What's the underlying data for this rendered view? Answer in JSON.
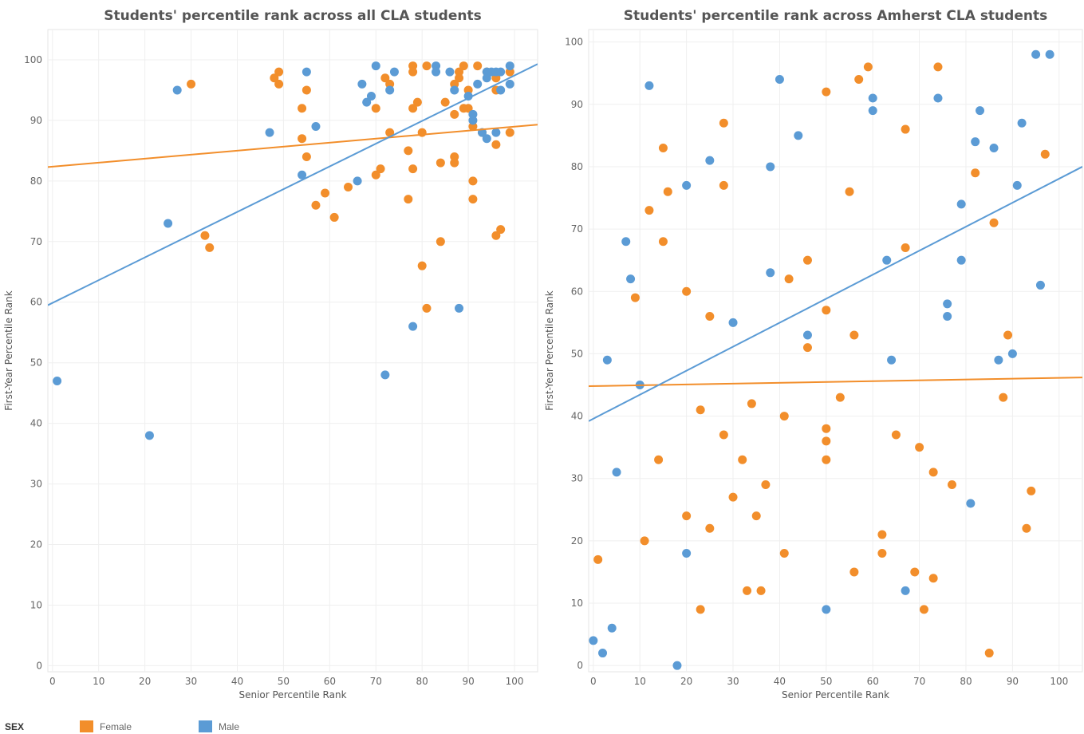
{
  "colors": {
    "female": "#F28E2B",
    "male": "#5B9BD5"
  },
  "legend": {
    "title": "SEX",
    "items": [
      {
        "label": "Female",
        "color": "#F28E2B"
      },
      {
        "label": "Male",
        "color": "#5B9BD5"
      }
    ]
  },
  "chart_data": [
    {
      "type": "scatter",
      "title": "Students' percentile rank across all CLA students",
      "xlabel": "Senior Percentile Rank",
      "ylabel": "First-Year Percentile Rank",
      "xlim": [
        -1,
        105
      ],
      "ylim": [
        -1,
        105
      ],
      "xticks": [
        0,
        10,
        20,
        30,
        40,
        50,
        60,
        70,
        80,
        90,
        100
      ],
      "yticks": [
        0,
        10,
        20,
        30,
        40,
        50,
        60,
        70,
        80,
        90,
        100
      ],
      "grid": true,
      "series": [
        {
          "name": "Female",
          "color": "#F28E2B",
          "trend": [
            [
              -1,
              82.3
            ],
            [
              105,
              89.3
            ]
          ],
          "points": [
            [
              30,
              96
            ],
            [
              33,
              71
            ],
            [
              34,
              69
            ],
            [
              48,
              97
            ],
            [
              49,
              98
            ],
            [
              49,
              96
            ],
            [
              54,
              92
            ],
            [
              54,
              87
            ],
            [
              55,
              95
            ],
            [
              55,
              84
            ],
            [
              57,
              76
            ],
            [
              59,
              78
            ],
            [
              61,
              74
            ],
            [
              64,
              79
            ],
            [
              70,
              81
            ],
            [
              70,
              92
            ],
            [
              71,
              82
            ],
            [
              72,
              97
            ],
            [
              73,
              96
            ],
            [
              73,
              88
            ],
            [
              77,
              85
            ],
            [
              77,
              77
            ],
            [
              78,
              99
            ],
            [
              78,
              98
            ],
            [
              78,
              92
            ],
            [
              78,
              82
            ],
            [
              79,
              93
            ],
            [
              80,
              88
            ],
            [
              80,
              66
            ],
            [
              81,
              99
            ],
            [
              81,
              59
            ],
            [
              84,
              83
            ],
            [
              84,
              70
            ],
            [
              85,
              93
            ],
            [
              87,
              96
            ],
            [
              87,
              91
            ],
            [
              87,
              84
            ],
            [
              87,
              83
            ],
            [
              88,
              98
            ],
            [
              88,
              97
            ],
            [
              89,
              99
            ],
            [
              89,
              92
            ],
            [
              90,
              95
            ],
            [
              90,
              92
            ],
            [
              91,
              89
            ],
            [
              91,
              80
            ],
            [
              91,
              77
            ],
            [
              92,
              99
            ],
            [
              93,
              88
            ],
            [
              94,
              98
            ],
            [
              96,
              97
            ],
            [
              96,
              95
            ],
            [
              96,
              86
            ],
            [
              96,
              71
            ],
            [
              97,
              72
            ],
            [
              99,
              98
            ],
            [
              99,
              88
            ]
          ]
        },
        {
          "name": "Male",
          "color": "#5B9BD5",
          "trend": [
            [
              -1,
              59.5
            ],
            [
              105,
              99.3
            ]
          ],
          "points": [
            [
              1,
              47
            ],
            [
              21,
              38
            ],
            [
              25,
              73
            ],
            [
              27,
              95
            ],
            [
              47,
              88
            ],
            [
              54,
              81
            ],
            [
              55,
              98
            ],
            [
              57,
              89
            ],
            [
              66,
              80
            ],
            [
              67,
              96
            ],
            [
              68,
              93
            ],
            [
              69,
              94
            ],
            [
              70,
              99
            ],
            [
              72,
              48
            ],
            [
              73,
              95
            ],
            [
              74,
              98
            ],
            [
              78,
              56
            ],
            [
              83,
              99
            ],
            [
              83,
              98
            ],
            [
              86,
              98
            ],
            [
              87,
              95
            ],
            [
              88,
              59
            ],
            [
              90,
              94
            ],
            [
              91,
              91
            ],
            [
              91,
              90
            ],
            [
              92,
              96
            ],
            [
              93,
              88
            ],
            [
              94,
              98
            ],
            [
              94,
              97
            ],
            [
              94,
              87
            ],
            [
              95,
              98
            ],
            [
              96,
              98
            ],
            [
              96,
              88
            ],
            [
              97,
              98
            ],
            [
              97,
              95
            ],
            [
              99,
              99
            ],
            [
              99,
              96
            ]
          ]
        }
      ]
    },
    {
      "type": "scatter",
      "title": "Students' percentile rank across Amherst CLA students",
      "xlabel": "Senior Percentile Rank",
      "ylabel": "First-Year Percentile Rank",
      "xlim": [
        -1,
        105
      ],
      "ylim": [
        -1,
        102
      ],
      "xticks": [
        0,
        10,
        20,
        30,
        40,
        50,
        60,
        70,
        80,
        90,
        100
      ],
      "yticks": [
        0,
        10,
        20,
        30,
        40,
        50,
        60,
        70,
        80,
        90,
        100
      ],
      "grid": true,
      "series": [
        {
          "name": "Female",
          "color": "#F28E2B",
          "trend": [
            [
              -1,
              44.8
            ],
            [
              105,
              46.2
            ]
          ],
          "points": [
            [
              1,
              17
            ],
            [
              9,
              59
            ],
            [
              11,
              20
            ],
            [
              12,
              73
            ],
            [
              14,
              33
            ],
            [
              15,
              83
            ],
            [
              15,
              68
            ],
            [
              16,
              76
            ],
            [
              20,
              60
            ],
            [
              20,
              24
            ],
            [
              23,
              41
            ],
            [
              23,
              9
            ],
            [
              25,
              56
            ],
            [
              25,
              22
            ],
            [
              28,
              87
            ],
            [
              28,
              77
            ],
            [
              28,
              37
            ],
            [
              30,
              27
            ],
            [
              32,
              33
            ],
            [
              33,
              12
            ],
            [
              34,
              42
            ],
            [
              35,
              24
            ],
            [
              36,
              12
            ],
            [
              37,
              29
            ],
            [
              41,
              40
            ],
            [
              41,
              18
            ],
            [
              42,
              62
            ],
            [
              46,
              65
            ],
            [
              46,
              51
            ],
            [
              50,
              92
            ],
            [
              50,
              57
            ],
            [
              50,
              38
            ],
            [
              50,
              36
            ],
            [
              50,
              33
            ],
            [
              53,
              43
            ],
            [
              55,
              76
            ],
            [
              56,
              53
            ],
            [
              56,
              15
            ],
            [
              57,
              94
            ],
            [
              59,
              96
            ],
            [
              62,
              21
            ],
            [
              62,
              18
            ],
            [
              65,
              37
            ],
            [
              67,
              86
            ],
            [
              67,
              67
            ],
            [
              69,
              15
            ],
            [
              70,
              35
            ],
            [
              71,
              9
            ],
            [
              73,
              31
            ],
            [
              73,
              14
            ],
            [
              74,
              96
            ],
            [
              77,
              29
            ],
            [
              82,
              79
            ],
            [
              85,
              2
            ],
            [
              86,
              71
            ],
            [
              88,
              43
            ],
            [
              89,
              53
            ],
            [
              93,
              22
            ],
            [
              94,
              28
            ],
            [
              97,
              82
            ]
          ]
        },
        {
          "name": "Male",
          "color": "#5B9BD5",
          "trend": [
            [
              -1,
              39.2
            ],
            [
              105,
              80
            ]
          ],
          "points": [
            [
              0,
              4
            ],
            [
              2,
              2
            ],
            [
              3,
              49
            ],
            [
              4,
              6
            ],
            [
              5,
              31
            ],
            [
              7,
              68
            ],
            [
              8,
              62
            ],
            [
              10,
              45
            ],
            [
              12,
              93
            ],
            [
              18,
              0
            ],
            [
              20,
              77
            ],
            [
              20,
              18
            ],
            [
              25,
              81
            ],
            [
              30,
              55
            ],
            [
              38,
              80
            ],
            [
              38,
              63
            ],
            [
              40,
              94
            ],
            [
              44,
              85
            ],
            [
              46,
              53
            ],
            [
              50,
              9
            ],
            [
              60,
              91
            ],
            [
              60,
              89
            ],
            [
              63,
              65
            ],
            [
              64,
              49
            ],
            [
              67,
              12
            ],
            [
              74,
              91
            ],
            [
              76,
              58
            ],
            [
              76,
              56
            ],
            [
              79,
              74
            ],
            [
              79,
              65
            ],
            [
              81,
              26
            ],
            [
              82,
              84
            ],
            [
              83,
              89
            ],
            [
              86,
              83
            ],
            [
              87,
              49
            ],
            [
              90,
              50
            ],
            [
              91,
              77
            ],
            [
              92,
              87
            ],
            [
              95,
              98
            ],
            [
              96,
              61
            ],
            [
              98,
              98
            ]
          ]
        }
      ]
    }
  ]
}
